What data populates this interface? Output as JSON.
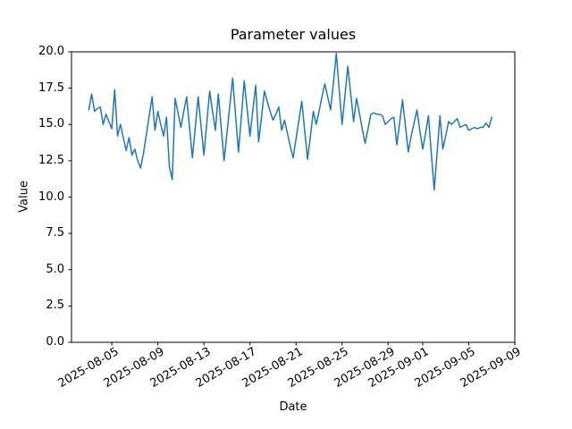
{
  "figure": {
    "title": "Parameter values",
    "xlabel": "Date",
    "ylabel": "Value"
  },
  "chart_data": {
    "type": "line",
    "title": "Parameter values",
    "xlabel": "Date",
    "ylabel": "Value",
    "grid": false,
    "legend": false,
    "line_color": "#1f77b4",
    "axes_color": "#000000",
    "background_color": "#ffffff",
    "ylim": [
      0,
      20
    ],
    "y_ticks": [
      0.0,
      2.5,
      5.0,
      7.5,
      10.0,
      12.5,
      15.0,
      17.5,
      20.0
    ],
    "x_tick_labels": [
      "2025-08-05",
      "2025-08-09",
      "2025-08-13",
      "2025-08-17",
      "2025-08-21",
      "2025-08-25",
      "2025-08-29",
      "2025-09-01",
      "2025-09-05",
      "2025-09-09"
    ],
    "x_tick_day_offsets": [
      2,
      6,
      10,
      14,
      18,
      22,
      26,
      29,
      33,
      37
    ],
    "xlim_day_offsets": [
      -1.5,
      37.0
    ],
    "series": [
      {
        "name": "Parameter values",
        "start_date": "2025-08-03",
        "sample_interval_hours": 6,
        "values": [
          16.0,
          17.1,
          15.9,
          16.1,
          16.2,
          15.0,
          15.7,
          15.2,
          14.7,
          17.4,
          14.2,
          15.0,
          14.1,
          13.2,
          14.1,
          12.9,
          13.3,
          12.5,
          12.0,
          13.0,
          14.3,
          15.6,
          16.9,
          14.6,
          15.9,
          15.0,
          14.2,
          15.5,
          12.1,
          11.2,
          16.8,
          15.8,
          14.8,
          15.9,
          16.9,
          14.8,
          12.7,
          14.8,
          16.9,
          14.9,
          12.9,
          15.1,
          17.3,
          15.9,
          14.6,
          17.1,
          14.8,
          12.5,
          14.4,
          16.3,
          18.2,
          15.6,
          13.1,
          15.5,
          18.0,
          16.1,
          14.2,
          16.0,
          17.7,
          13.8,
          15.5,
          17.3,
          16.6,
          15.9,
          15.3,
          15.7,
          16.2,
          14.6,
          15.3,
          14.4,
          13.5,
          12.7,
          14.0,
          15.3,
          16.6,
          14.6,
          12.6,
          14.2,
          15.9,
          15.0,
          15.9,
          16.9,
          17.8,
          16.9,
          16.0,
          17.9,
          19.9,
          17.4,
          15.0,
          17.0,
          19.0,
          17.1,
          15.2,
          16.8,
          15.8,
          14.7,
          13.7,
          14.7,
          15.7,
          15.8,
          15.7,
          15.7,
          15.6,
          15.0,
          15.2,
          15.4,
          15.5,
          13.6,
          15.1,
          16.7,
          14.9,
          13.1,
          14.2,
          15.1,
          16.0,
          14.6,
          13.3,
          14.4,
          15.6,
          13.0,
          10.5,
          13.0,
          15.6,
          13.3,
          14.2,
          15.2,
          15.0,
          15.2,
          15.4,
          14.8,
          14.9,
          15.0,
          14.6,
          14.7,
          14.8,
          14.7,
          14.8,
          14.8,
          15.1,
          14.8,
          15.5
        ]
      }
    ]
  }
}
